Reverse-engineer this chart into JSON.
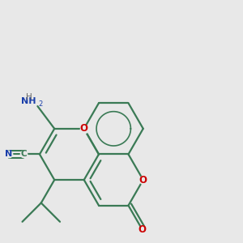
{
  "bg_color": "#e8e8e8",
  "bond_color": "#3a7a55",
  "oxygen_color": "#cc0000",
  "nitrogen_color": "#1a3faa",
  "bond_lw": 1.6,
  "fig_size": [
    3.0,
    3.0
  ],
  "dpi": 100,
  "xlim": [
    0.0,
    5.0
  ],
  "ylim": [
    0.0,
    5.0
  ]
}
